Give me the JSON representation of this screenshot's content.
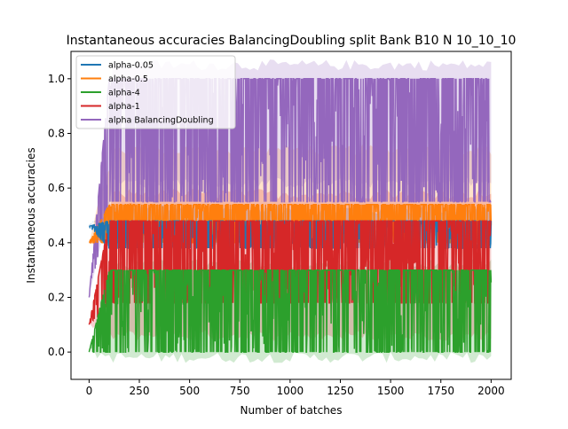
{
  "chart_data": {
    "type": "line",
    "title": "Instantaneous accuracies BalancingDoubling split Bank B10 N 10_10_10",
    "xlabel": "Number of batches",
    "ylabel": "Instantaneous accuracies",
    "xlim": [
      -90,
      2100
    ],
    "ylim": [
      -0.1,
      1.1
    ],
    "xticks": [
      0,
      250,
      500,
      750,
      1000,
      1250,
      1500,
      1750,
      2000
    ],
    "yticks": [
      0.0,
      0.2,
      0.4,
      0.6,
      0.8,
      1.0
    ],
    "xtick_labels": [
      "0",
      "250",
      "500",
      "750",
      "1000",
      "1250",
      "1500",
      "1750",
      "2000"
    ],
    "ytick_labels": [
      "0.0",
      "0.2",
      "0.4",
      "0.6",
      "0.8",
      "1.0"
    ],
    "grid": false,
    "legend_position": "upper left",
    "n_batches": 2000,
    "series": [
      {
        "name": "alpha-0.05",
        "color": "#1f77b4",
        "lo": 0.38,
        "hi": 0.48,
        "start_value": 0.46,
        "band_lo": 0.46,
        "band_hi": 0.52
      },
      {
        "name": "alpha-0.5",
        "color": "#ff7f0e",
        "lo": 0.4,
        "hi": 0.54,
        "start_value": 0.4,
        "band_lo": 0.42,
        "band_hi": 0.74
      },
      {
        "name": "alpha-4",
        "color": "#2ca02c",
        "lo": 0.0,
        "hi": 0.3,
        "start_value": 0.0,
        "band_lo": -0.02,
        "band_hi": 0.32
      },
      {
        "name": "alpha-1",
        "color": "#d62728",
        "lo": 0.18,
        "hi": 0.48,
        "start_value": 0.1,
        "band_lo": 0.06,
        "band_hi": 0.58
      },
      {
        "name": "alpha BalancingDoubling",
        "color": "#9467bd",
        "lo": 0.55,
        "hi": 1.0,
        "start_value": 0.2,
        "band_lo": 0.62,
        "band_hi": 1.05
      }
    ]
  }
}
